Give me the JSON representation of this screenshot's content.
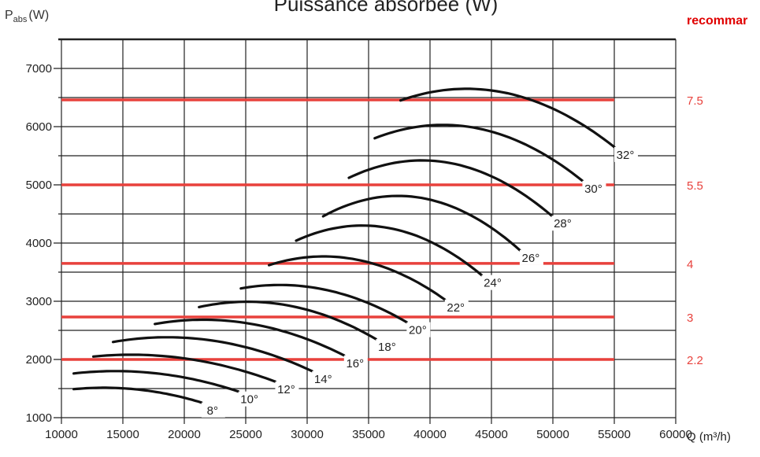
{
  "chart_data": {
    "type": "line",
    "title": "Puissance absorbée (W)",
    "ylabel_main": "P",
    "ylabel_sub": "abs",
    "ylabel_unit": "(W)",
    "xlabel": "Q (m³/h)",
    "right_label": "recommar",
    "xlim": [
      10000,
      60000
    ],
    "ylim": [
      1000,
      7500
    ],
    "x_ticks": [
      10000,
      15000,
      20000,
      25000,
      30000,
      35000,
      40000,
      45000,
      50000,
      55000,
      60000
    ],
    "y_ticks": [
      1000,
      2000,
      3000,
      4000,
      5000,
      6000,
      7000
    ],
    "grid": true,
    "colors": {
      "curve": "#111111",
      "motor_line": "#e8413c",
      "right_text": "#e00000",
      "grid": "#222222"
    },
    "motor_lines": [
      {
        "label": "7.5",
        "y": 6460
      },
      {
        "label": "5.5",
        "y": 5000
      },
      {
        "label": "4",
        "y": 3650
      },
      {
        "label": "3",
        "y": 2730
      },
      {
        "label": "2.2",
        "y": 2000
      }
    ],
    "motor_lines_x_range": [
      10000,
      55000
    ],
    "series": [
      {
        "name": "8°",
        "points": [
          [
            11000,
            1490
          ],
          [
            14500,
            1510
          ],
          [
            21400,
            1260
          ]
        ]
      },
      {
        "name": "10°",
        "points": [
          [
            11000,
            1760
          ],
          [
            14500,
            1800
          ],
          [
            24400,
            1450
          ]
        ]
      },
      {
        "name": "12°",
        "points": [
          [
            12600,
            2050
          ],
          [
            16400,
            2080
          ],
          [
            27400,
            1620
          ]
        ]
      },
      {
        "name": "14°",
        "points": [
          [
            14200,
            2300
          ],
          [
            18000,
            2380
          ],
          [
            30400,
            1800
          ]
        ]
      },
      {
        "name": "16°",
        "points": [
          [
            17600,
            2610
          ],
          [
            20800,
            2680
          ],
          [
            33000,
            2070
          ]
        ]
      },
      {
        "name": "18°",
        "points": [
          [
            21200,
            2900
          ],
          [
            24600,
            2990
          ],
          [
            35600,
            2350
          ]
        ]
      },
      {
        "name": "20°",
        "points": [
          [
            24600,
            3220
          ],
          [
            27600,
            3280
          ],
          [
            38100,
            2640
          ]
        ]
      },
      {
        "name": "22°",
        "points": [
          [
            26900,
            3620
          ],
          [
            31400,
            3770
          ],
          [
            41200,
            3030
          ]
        ]
      },
      {
        "name": "24°",
        "points": [
          [
            29100,
            4040
          ],
          [
            34800,
            4300
          ],
          [
            44200,
            3450
          ]
        ]
      },
      {
        "name": "26°",
        "points": [
          [
            31300,
            4460
          ],
          [
            37400,
            4810
          ],
          [
            47300,
            3880
          ]
        ]
      },
      {
        "name": "28°",
        "points": [
          [
            33400,
            5120
          ],
          [
            39300,
            5420
          ],
          [
            49900,
            4470
          ]
        ]
      },
      {
        "name": "30°",
        "points": [
          [
            35500,
            5800
          ],
          [
            41200,
            6030
          ],
          [
            52400,
            5070
          ]
        ]
      },
      {
        "name": "32°",
        "points": [
          [
            37600,
            6450
          ],
          [
            43100,
            6650
          ],
          [
            55000,
            5650
          ]
        ]
      }
    ]
  }
}
